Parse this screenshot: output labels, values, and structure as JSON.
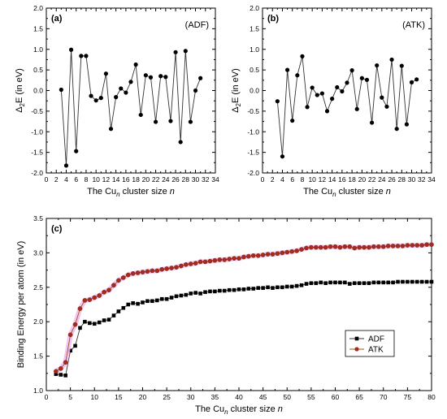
{
  "chart_data": [
    {
      "type": "line",
      "panel_label": "(a)",
      "name_label": "(ADF)",
      "xlabel": {
        "prefix": "The Cu",
        "sub": "n",
        "suffix": " cluster size ",
        "var": "n"
      },
      "ylabel": {
        "pre": "Δ",
        "sub": "2",
        "post": "E (in eV)"
      },
      "xlim": [
        0,
        34
      ],
      "ylim": [
        -2.0,
        2.0
      ],
      "xticks": [
        "0",
        "2",
        "4",
        "6",
        "8",
        "10",
        "12",
        "14",
        "16",
        "18",
        "20",
        "22",
        "24",
        "26",
        "28",
        "30",
        "32",
        "34"
      ],
      "yticks": [
        "-2.0",
        "-1.5",
        "-1.0",
        "-0.5",
        "0.0",
        "0.5",
        "1.0",
        "1.5",
        "2.0"
      ],
      "grid": false,
      "series": [
        {
          "x": [
            3,
            4,
            5,
            6,
            7,
            8,
            9,
            10,
            11,
            12,
            13,
            14,
            15,
            16,
            17,
            18,
            19,
            20,
            21,
            22,
            23,
            24,
            25,
            26,
            27,
            28,
            29,
            30,
            31
          ],
          "y": [
            0.02,
            -1.82,
            0.99,
            -1.47,
            0.84,
            0.84,
            -0.13,
            -0.24,
            -0.18,
            0.41,
            -0.93,
            -0.16,
            0.05,
            -0.05,
            0.21,
            0.63,
            -0.59,
            0.37,
            0.32,
            -0.76,
            0.35,
            0.33,
            -0.74,
            0.93,
            -1.25,
            0.96,
            -0.76,
            0.0,
            0.3
          ]
        }
      ]
    },
    {
      "type": "line",
      "panel_label": "(b)",
      "name_label": "(ATK)",
      "xlabel": {
        "prefix": "The Cu",
        "sub": "n",
        "suffix": " cluster size ",
        "var": "n"
      },
      "ylabel": {
        "pre": "Δ",
        "sub": "2",
        "post": "E (in eV)"
      },
      "xlim": [
        0,
        34
      ],
      "ylim": [
        -2.0,
        2.0
      ],
      "xticks": [
        "0",
        "2",
        "4",
        "6",
        "8",
        "10",
        "12",
        "14",
        "16",
        "18",
        "20",
        "22",
        "24",
        "26",
        "28",
        "30",
        "32",
        "34"
      ],
      "yticks": [
        "-2.0",
        "-1.5",
        "-1.0",
        "-0.5",
        "0.0",
        "0.5",
        "1.0",
        "1.5",
        "2.0"
      ],
      "grid": false,
      "series": [
        {
          "x": [
            3,
            4,
            5,
            6,
            7,
            8,
            9,
            10,
            11,
            12,
            13,
            14,
            15,
            16,
            17,
            18,
            19,
            20,
            21,
            22,
            23,
            24,
            25,
            26,
            27,
            28,
            29,
            30,
            31
          ],
          "y": [
            -0.26,
            -1.6,
            0.5,
            -0.73,
            0.37,
            0.83,
            -0.4,
            0.07,
            -0.11,
            -0.07,
            -0.5,
            -0.2,
            0.08,
            -0.02,
            0.19,
            0.49,
            -0.45,
            0.3,
            0.26,
            -0.78,
            0.61,
            -0.17,
            -0.39,
            0.75,
            -0.93,
            0.6,
            -0.82,
            0.2,
            0.27
          ]
        }
      ]
    },
    {
      "type": "line",
      "panel_label": "(c)",
      "xlabel": {
        "prefix": "The Cu",
        "sub": "n",
        "suffix": " cluster size ",
        "var": "n"
      },
      "ylabel": {
        "pre": "Binding Energy per atom (in eV)",
        "sub": "",
        "post": ""
      },
      "xlim": [
        0,
        80
      ],
      "ylim": [
        1.0,
        3.5
      ],
      "xticks": [
        "0",
        "5",
        "10",
        "15",
        "20",
        "25",
        "30",
        "35",
        "40",
        "45",
        "50",
        "55",
        "60",
        "65",
        "70",
        "75",
        "80"
      ],
      "yticks": [
        "1.0",
        "1.5",
        "2.0",
        "2.5",
        "3.0",
        "3.5"
      ],
      "grid": false,
      "legend": "lower-right",
      "series": [
        {
          "name": "ADF",
          "color": "#000000",
          "marker": "square",
          "x": [
            2,
            3,
            4,
            5,
            6,
            7,
            8,
            9,
            10,
            11,
            12,
            13,
            14,
            15,
            16,
            17,
            18,
            19,
            20,
            21,
            22,
            23,
            24,
            25,
            26,
            27,
            28,
            29,
            30,
            31,
            32,
            33,
            34,
            35,
            36,
            37,
            38,
            39,
            40,
            41,
            42,
            43,
            44,
            45,
            46,
            47,
            48,
            49,
            50,
            51,
            52,
            53,
            54,
            55,
            56,
            57,
            58,
            59,
            60,
            61,
            62,
            63,
            64,
            65,
            66,
            67,
            68,
            69,
            70,
            71,
            72,
            73,
            74,
            75,
            76,
            77,
            78,
            79,
            80
          ],
          "y": [
            1.24,
            1.23,
            1.22,
            1.58,
            1.65,
            1.91,
            2.0,
            1.98,
            1.97,
            1.99,
            2.02,
            2.03,
            2.09,
            2.15,
            2.2,
            2.25,
            2.27,
            2.26,
            2.28,
            2.3,
            2.3,
            2.31,
            2.33,
            2.33,
            2.35,
            2.37,
            2.38,
            2.39,
            2.41,
            2.42,
            2.41,
            2.43,
            2.44,
            2.44,
            2.45,
            2.45,
            2.46,
            2.46,
            2.47,
            2.47,
            2.48,
            2.48,
            2.49,
            2.49,
            2.5,
            2.49,
            2.5,
            2.5,
            2.51,
            2.51,
            2.52,
            2.53,
            2.55,
            2.56,
            2.56,
            2.57,
            2.56,
            2.57,
            2.57,
            2.57,
            2.57,
            2.55,
            2.56,
            2.56,
            2.56,
            2.56,
            2.57,
            2.57,
            2.57,
            2.57,
            2.57,
            2.58,
            2.58,
            2.58,
            2.58,
            2.58,
            2.58,
            2.58,
            2.58
          ]
        },
        {
          "name": "ATK",
          "color": "#b52020",
          "marker": "circle",
          "x": [
            2,
            3,
            4,
            5,
            6,
            7,
            8,
            9,
            10,
            11,
            12,
            13,
            14,
            15,
            16,
            17,
            18,
            19,
            20,
            21,
            22,
            23,
            24,
            25,
            26,
            27,
            28,
            29,
            30,
            31,
            32,
            33,
            34,
            35,
            36,
            37,
            38,
            39,
            40,
            41,
            42,
            43,
            44,
            45,
            46,
            47,
            48,
            49,
            50,
            51,
            52,
            53,
            54,
            55,
            56,
            57,
            58,
            59,
            60,
            61,
            62,
            63,
            64,
            65,
            66,
            67,
            68,
            69,
            70,
            71,
            72,
            73,
            74,
            75,
            76,
            77,
            78,
            79,
            80
          ],
          "y": [
            1.28,
            1.32,
            1.41,
            1.81,
            1.96,
            2.19,
            2.31,
            2.32,
            2.35,
            2.38,
            2.43,
            2.46,
            2.53,
            2.6,
            2.64,
            2.68,
            2.7,
            2.71,
            2.72,
            2.73,
            2.74,
            2.74,
            2.76,
            2.77,
            2.78,
            2.79,
            2.81,
            2.83,
            2.84,
            2.85,
            2.87,
            2.87,
            2.88,
            2.89,
            2.9,
            2.9,
            2.91,
            2.92,
            2.92,
            2.94,
            2.95,
            2.96,
            2.96,
            2.97,
            2.98,
            2.98,
            2.99,
            3.0,
            3.01,
            3.02,
            3.03,
            3.05,
            3.07,
            3.08,
            3.08,
            3.08,
            3.08,
            3.09,
            3.09,
            3.08,
            3.09,
            3.09,
            3.07,
            3.08,
            3.08,
            3.08,
            3.09,
            3.09,
            3.09,
            3.1,
            3.1,
            3.1,
            3.1,
            3.11,
            3.11,
            3.11,
            3.11,
            3.12,
            3.12
          ]
        }
      ]
    }
  ]
}
